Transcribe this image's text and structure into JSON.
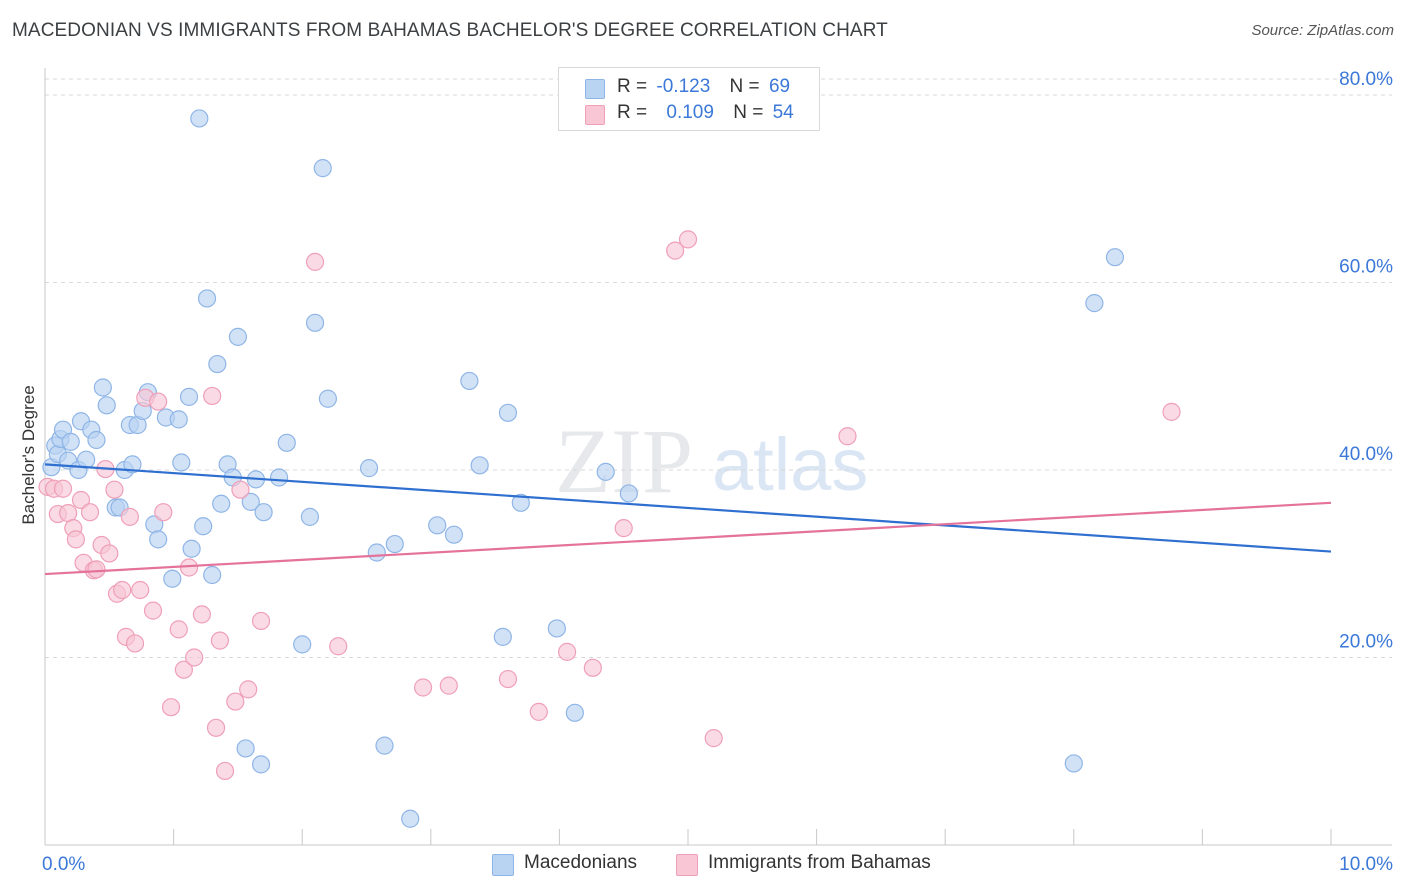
{
  "title": "MACEDONIAN VS IMMIGRANTS FROM BAHAMAS BACHELOR'S DEGREE CORRELATION CHART",
  "source": "Source: ZipAtlas.com",
  "watermark": {
    "zip": "ZIP",
    "atlas": "atlas"
  },
  "legend": {
    "r_label": "R =",
    "n_label": "N =",
    "rows": [
      {
        "r": "-0.123",
        "n": "69"
      },
      {
        "r": "0.109",
        "n": "54"
      }
    ]
  },
  "colors": {
    "blue_fill": "#b9d3f3",
    "blue_stroke": "#8fb5e6",
    "blue_line": "#2f6fd0",
    "pink_fill": "#f8c6d5",
    "pink_stroke": "#ef9fb7",
    "pink_line": "#e4729a",
    "axis_text": "#3b78d8"
  },
  "chart_data": {
    "type": "scatter",
    "title": "MACEDONIAN VS IMMIGRANTS FROM BAHAMAS BACHELOR'S DEGREE CORRELATION CHART",
    "xlabel": "",
    "ylabel": "Bachelor's Degree",
    "xlim": [
      0,
      10
    ],
    "ylim": [
      0,
      80
    ],
    "x_tick_labels": [
      "0.0%",
      "10.0%"
    ],
    "y_tick_labels": [
      "20.0%",
      "40.0%",
      "60.0%",
      "80.0%"
    ],
    "y_ticks": [
      20,
      40,
      60,
      80
    ],
    "grid": true,
    "legend_position": "top-center",
    "series": [
      {
        "name": "Macedonians",
        "color": "#b9d3f3",
        "trend": {
          "x": [
            0,
            10
          ],
          "y": [
            40.6,
            31.3
          ]
        },
        "points": [
          [
            0.05,
            40.3
          ],
          [
            0.08,
            42.6
          ],
          [
            0.1,
            41.7
          ],
          [
            0.12,
            43.3
          ],
          [
            0.14,
            44.3
          ],
          [
            0.18,
            41.0
          ],
          [
            0.2,
            43.0
          ],
          [
            0.26,
            40.0
          ],
          [
            0.28,
            45.2
          ],
          [
            0.32,
            41.1
          ],
          [
            0.36,
            44.3
          ],
          [
            0.4,
            43.2
          ],
          [
            0.45,
            48.8
          ],
          [
            0.48,
            46.9
          ],
          [
            0.55,
            36.0
          ],
          [
            0.58,
            36.0
          ],
          [
            0.62,
            40.0
          ],
          [
            0.66,
            44.8
          ],
          [
            0.68,
            40.6
          ],
          [
            0.72,
            44.8
          ],
          [
            0.76,
            46.3
          ],
          [
            0.8,
            48.3
          ],
          [
            0.85,
            34.2
          ],
          [
            0.88,
            32.6
          ],
          [
            0.94,
            45.6
          ],
          [
            0.99,
            28.4
          ],
          [
            1.04,
            45.4
          ],
          [
            1.06,
            40.8
          ],
          [
            1.12,
            47.8
          ],
          [
            1.14,
            31.6
          ],
          [
            1.2,
            77.5
          ],
          [
            1.23,
            34.0
          ],
          [
            1.26,
            58.3
          ],
          [
            1.3,
            28.8
          ],
          [
            1.34,
            51.3
          ],
          [
            1.37,
            36.4
          ],
          [
            1.42,
            40.6
          ],
          [
            1.46,
            39.2
          ],
          [
            1.5,
            54.2
          ],
          [
            1.56,
            10.3
          ],
          [
            1.6,
            36.6
          ],
          [
            1.64,
            39.0
          ],
          [
            1.68,
            8.6
          ],
          [
            1.7,
            35.5
          ],
          [
            1.82,
            39.2
          ],
          [
            1.88,
            42.9
          ],
          [
            2.0,
            21.4
          ],
          [
            2.06,
            35.0
          ],
          [
            2.1,
            55.7
          ],
          [
            2.16,
            72.2
          ],
          [
            2.2,
            47.6
          ],
          [
            2.52,
            40.2
          ],
          [
            2.58,
            31.2
          ],
          [
            2.64,
            10.6
          ],
          [
            2.72,
            32.1
          ],
          [
            2.84,
            2.8
          ],
          [
            3.05,
            34.1
          ],
          [
            3.18,
            33.1
          ],
          [
            3.3,
            49.5
          ],
          [
            3.38,
            40.5
          ],
          [
            3.56,
            22.2
          ],
          [
            3.6,
            46.1
          ],
          [
            3.7,
            36.5
          ],
          [
            3.98,
            23.1
          ],
          [
            4.12,
            14.1
          ],
          [
            4.36,
            39.8
          ],
          [
            4.54,
            37.5
          ],
          [
            8.16,
            57.8
          ],
          [
            8.32,
            62.7
          ],
          [
            8.0,
            8.7
          ]
        ]
      },
      {
        "name": "Immigrants from Bahamas",
        "color": "#f8c6d5",
        "trend": {
          "x": [
            0,
            10
          ],
          "y": [
            28.9,
            36.5
          ]
        },
        "points": [
          [
            0.02,
            38.2
          ],
          [
            0.07,
            38.0
          ],
          [
            0.1,
            35.3
          ],
          [
            0.14,
            38.0
          ],
          [
            0.18,
            35.4
          ],
          [
            0.22,
            33.8
          ],
          [
            0.24,
            32.6
          ],
          [
            0.28,
            36.8
          ],
          [
            0.3,
            30.1
          ],
          [
            0.35,
            35.5
          ],
          [
            0.38,
            29.3
          ],
          [
            0.4,
            29.4
          ],
          [
            0.44,
            32.0
          ],
          [
            0.47,
            40.1
          ],
          [
            0.5,
            31.1
          ],
          [
            0.54,
            37.9
          ],
          [
            0.56,
            26.8
          ],
          [
            0.6,
            27.2
          ],
          [
            0.63,
            22.2
          ],
          [
            0.66,
            35.0
          ],
          [
            0.7,
            21.5
          ],
          [
            0.74,
            27.2
          ],
          [
            0.78,
            47.7
          ],
          [
            0.84,
            25.0
          ],
          [
            0.88,
            47.3
          ],
          [
            0.92,
            35.5
          ],
          [
            0.98,
            14.7
          ],
          [
            1.04,
            23.0
          ],
          [
            1.08,
            18.7
          ],
          [
            1.12,
            29.6
          ],
          [
            1.16,
            20.0
          ],
          [
            1.22,
            24.6
          ],
          [
            1.3,
            47.9
          ],
          [
            1.33,
            12.5
          ],
          [
            1.36,
            21.8
          ],
          [
            1.4,
            7.9
          ],
          [
            1.48,
            15.3
          ],
          [
            1.52,
            37.9
          ],
          [
            1.58,
            16.6
          ],
          [
            1.68,
            23.9
          ],
          [
            2.1,
            62.2
          ],
          [
            2.28,
            21.2
          ],
          [
            2.94,
            16.8
          ],
          [
            3.14,
            17.0
          ],
          [
            3.6,
            17.7
          ],
          [
            3.84,
            14.2
          ],
          [
            4.06,
            20.6
          ],
          [
            4.26,
            18.9
          ],
          [
            4.5,
            33.8
          ],
          [
            4.9,
            63.4
          ],
          [
            5.0,
            64.6
          ],
          [
            5.2,
            11.4
          ],
          [
            6.24,
            43.6
          ],
          [
            8.76,
            46.2
          ]
        ]
      }
    ]
  },
  "bottom_legend": [
    "Macedonians",
    "Immigrants from Bahamas"
  ]
}
